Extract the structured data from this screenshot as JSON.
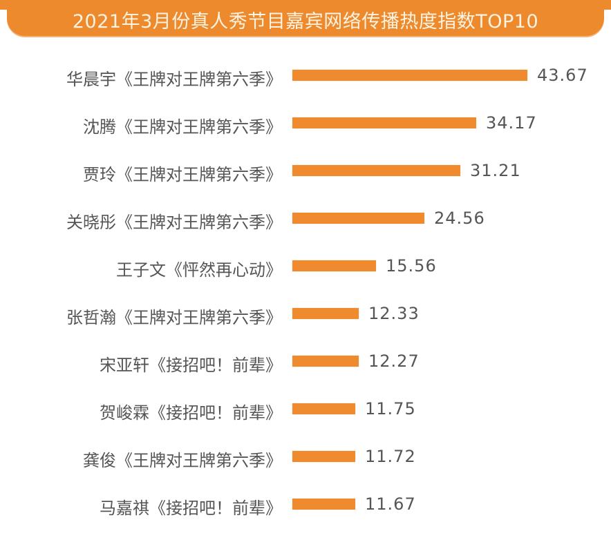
{
  "title": "2021年3月份真人秀节目嘉宾网络传播热度指数TOP10",
  "colors": {
    "banner": "#ee8a2e",
    "banner_text": "#fdf3e0",
    "bar": "#f08a2e",
    "text": "#555555"
  },
  "chart_data": {
    "type": "bar",
    "orientation": "horizontal",
    "title": "2021年3月份真人秀节目嘉宾网络传播热度指数TOP10",
    "xlabel": "",
    "ylabel": "",
    "grid": false,
    "legend": null,
    "categories": [
      "华晨宇《王牌对王牌第六季》",
      "沈腾《王牌对王牌第六季》",
      "贾玲《王牌对王牌第六季》",
      "关晓彤《王牌对王牌第六季》",
      "王子文《怦然再心动》",
      "张哲瀚《王牌对王牌第六季》",
      "宋亚轩《接招吧！前辈》",
      "贺峻霖《接招吧！前辈》",
      "龚俊《王牌对王牌第六季》",
      "马嘉祺《接招吧！前辈》"
    ],
    "values": [
      43.67,
      34.17,
      31.21,
      24.56,
      15.56,
      12.33,
      12.27,
      11.75,
      11.72,
      11.67
    ],
    "value_labels": [
      "43.67",
      "34.17",
      "31.21",
      "24.56",
      "15.56",
      "12.33",
      "12.27",
      "11.75",
      "11.72",
      "11.67"
    ],
    "xlim": [
      0,
      45
    ]
  }
}
